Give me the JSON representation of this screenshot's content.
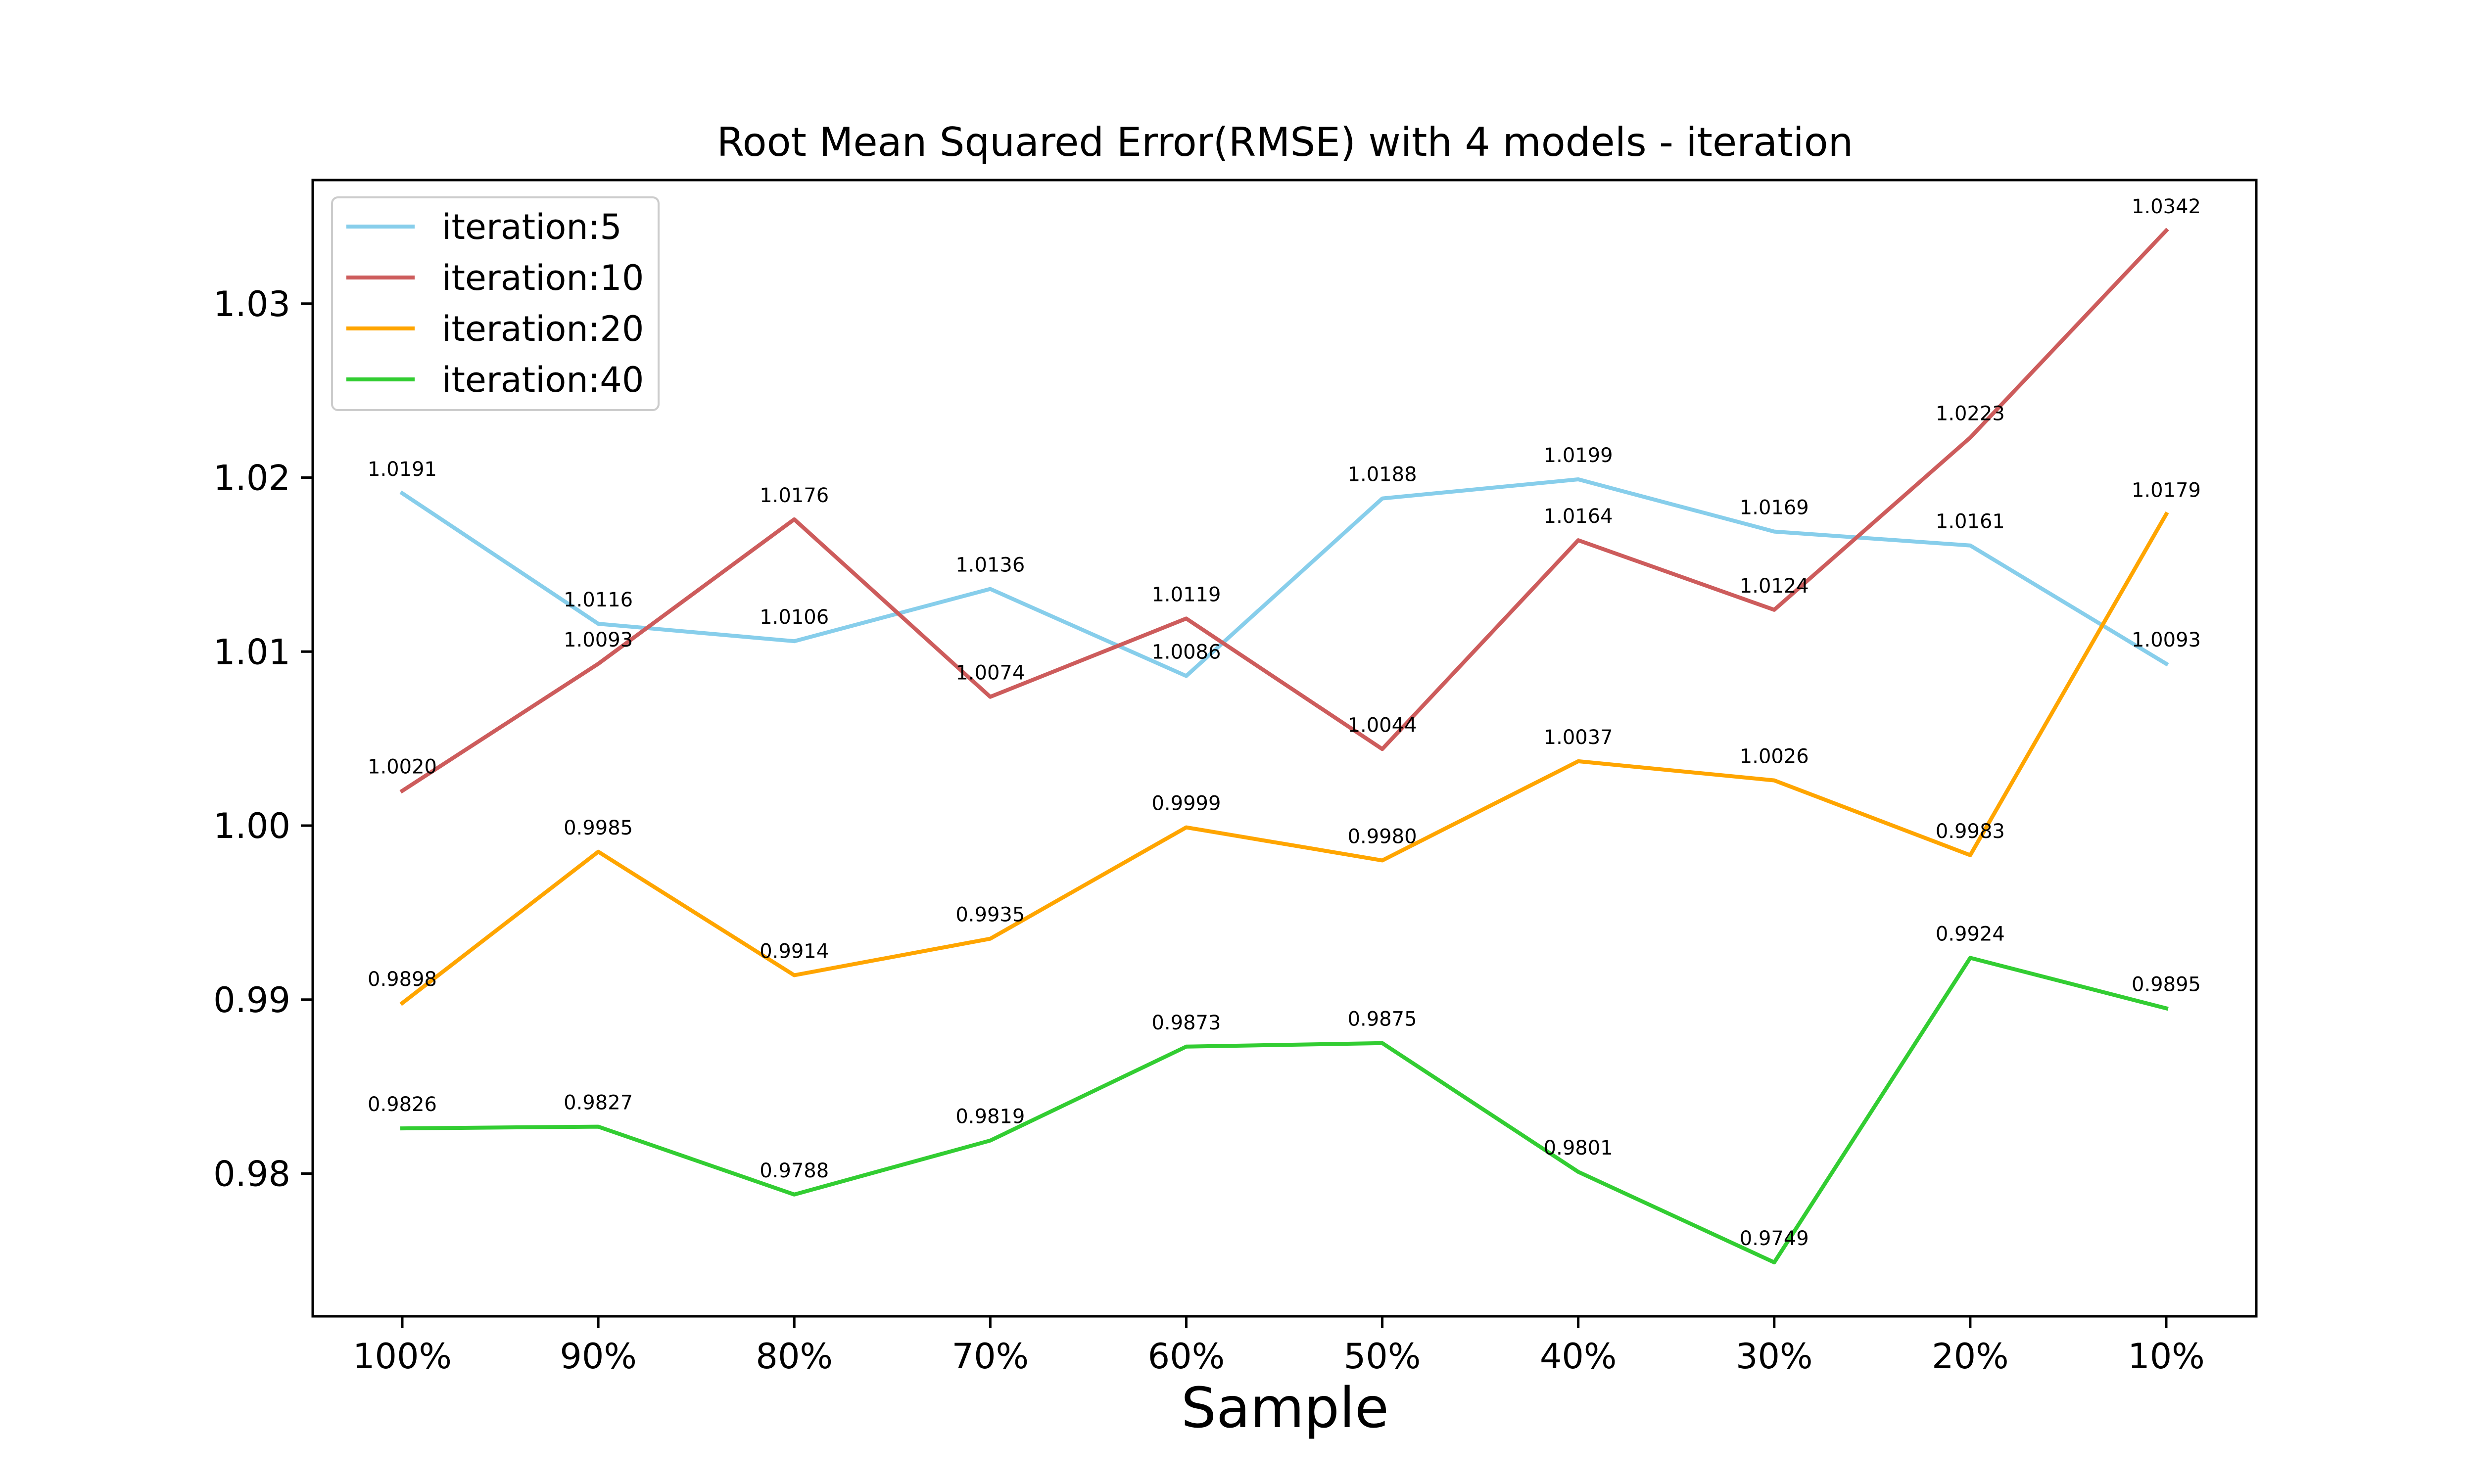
{
  "chart_data": {
    "type": "line",
    "title": "Root Mean Squared Error(RMSE) with 4 models - iteration",
    "xlabel": "Sample",
    "ylabel": "",
    "categories": [
      "100%",
      "90%",
      "80%",
      "70%",
      "60%",
      "50%",
      "40%",
      "30%",
      "20%",
      "10%"
    ],
    "ylim": [
      0.9718,
      1.0371
    ],
    "yticks": [
      0.98,
      0.99,
      1.0,
      1.01,
      1.02,
      1.03
    ],
    "ytick_labels": [
      "0.98",
      "0.99",
      "1.00",
      "1.01",
      "1.02",
      "1.03"
    ],
    "grid": false,
    "legend": "top-left",
    "series": [
      {
        "name": "iteration:5",
        "color": "#87ceeb",
        "values": [
          1.0191,
          1.0116,
          1.0106,
          1.0136,
          1.0086,
          1.0188,
          1.0199,
          1.0169,
          1.0161,
          1.0093
        ],
        "labels": [
          "1.0191",
          "1.0116",
          "1.0106",
          "1.0136",
          "1.0086",
          "1.0188",
          "1.0199",
          "1.0169",
          "1.0161",
          "1.0093"
        ]
      },
      {
        "name": "iteration:10",
        "color": "#cd5c5c",
        "values": [
          1.002,
          1.0093,
          1.0176,
          1.0074,
          1.0119,
          1.0044,
          1.0164,
          1.0124,
          1.0223,
          1.0342
        ],
        "labels": [
          "1.0020",
          "1.0093",
          "1.0176",
          "1.0074",
          "1.0119",
          "1.0044",
          "1.0164",
          "1.0124",
          "1.0223",
          "1.0342"
        ]
      },
      {
        "name": "iteration:20",
        "color": "#ffa500",
        "values": [
          0.9898,
          0.9985,
          0.9914,
          0.9935,
          0.9999,
          0.998,
          1.0037,
          1.0026,
          0.9983,
          1.0179
        ],
        "labels": [
          "0.9898",
          "0.9985",
          "0.9914",
          "0.9935",
          "0.9999",
          "0.9980",
          "1.0037",
          "1.0026",
          "0.9983",
          "1.0179"
        ]
      },
      {
        "name": "iteration:40",
        "color": "#32cd32",
        "values": [
          0.9826,
          0.9827,
          0.9788,
          0.9819,
          0.9873,
          0.9875,
          0.9801,
          0.9749,
          0.9924,
          0.9895
        ],
        "labels": [
          "0.9826",
          "0.9827",
          "0.9788",
          "0.9819",
          "0.9873",
          "0.9875",
          "0.9801",
          "0.9749",
          "0.9924",
          "0.9895"
        ]
      }
    ]
  }
}
